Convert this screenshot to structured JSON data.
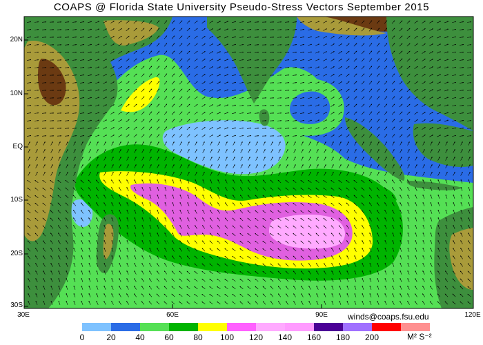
{
  "title": "COAPS @ Florida State University Pseudo-Stress Vectors September 2015",
  "credit": "winds@coaps.fsu.edu",
  "units": "M² S⁻²",
  "latitude_labels": [
    "20N",
    "10N",
    "EQ",
    "10S",
    "20S",
    "30S"
  ],
  "longitude_labels": [
    "30E",
    "60E",
    "90E",
    "120E"
  ],
  "legend": {
    "values": [
      "0",
      "20",
      "40",
      "60",
      "80",
      "100",
      "120",
      "140",
      "160",
      "180",
      "200"
    ],
    "colors": [
      "#7ec2ff",
      "#2a6ce6",
      "#55e055",
      "#00b400",
      "#ffff00",
      "#ff60ff",
      "#ffaaff",
      "#ff9bff",
      "#4b0096",
      "#a070ff",
      "#ff0000",
      "#ff9090"
    ]
  },
  "map_colors": {
    "ocean_low": "#7ec2ff",
    "ocean_mid": "#2a6ce6",
    "wind_40_60": "#55e055",
    "wind_60_80": "#00b400",
    "wind_80_100": "#ffff00",
    "wind_100_120": "#ff60ff",
    "wind_120_140": "#ffaaff",
    "land_low": "#3d8f3d",
    "land_mid": "#a99b3a",
    "land_high": "#6b3a12",
    "coast": "#c8c8c8"
  },
  "icons": [
    "vector-arrow-icon"
  ]
}
